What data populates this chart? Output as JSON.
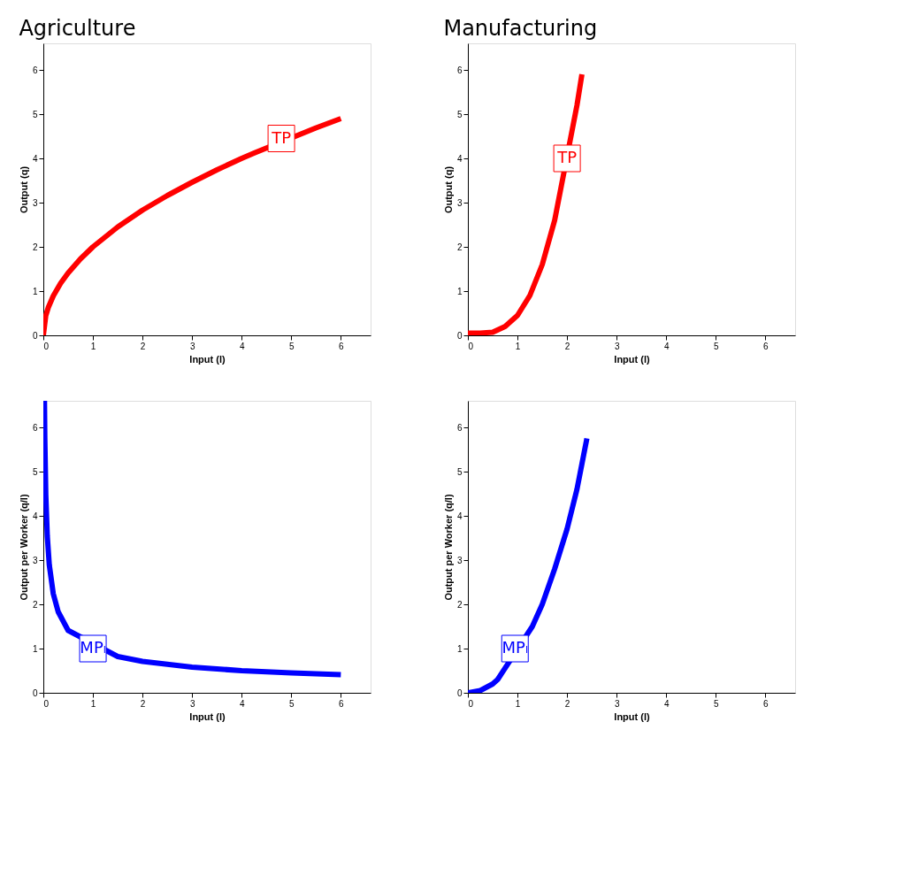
{
  "chart_data": [
    {
      "type": "line",
      "title": "Agriculture",
      "xlabel": "Input (l)",
      "ylabel": "Output (q)",
      "xlim": [
        0,
        6.6
      ],
      "ylim": [
        0,
        6.6
      ],
      "xticks": [
        0,
        1,
        2,
        3,
        4,
        5,
        6
      ],
      "yticks": [
        0,
        1,
        2,
        3,
        4,
        5,
        6
      ],
      "grid": false,
      "series": [
        {
          "color": "#ff0000",
          "x": [
            0,
            0.05,
            0.1,
            0.2,
            0.35,
            0.5,
            0.75,
            1,
            1.5,
            2,
            2.5,
            3,
            3.5,
            4,
            4.25,
            5.5,
            6
          ],
          "values": [
            0,
            0.45,
            0.63,
            0.89,
            1.18,
            1.41,
            1.73,
            2,
            2.45,
            2.83,
            3.16,
            3.46,
            3.74,
            4,
            4.12,
            4.69,
            4.9
          ]
        }
      ],
      "annotations": [
        {
          "text": "TP",
          "x": 4.8,
          "y": 4.45
        }
      ]
    },
    {
      "type": "line",
      "title": "Manufacturing",
      "xlabel": "Input (l)",
      "ylabel": "Output (q)",
      "xlim": [
        0,
        6.6
      ],
      "ylim": [
        0,
        6.6
      ],
      "xticks": [
        0,
        1,
        2,
        3,
        4,
        5,
        6
      ],
      "yticks": [
        0,
        1,
        2,
        3,
        4,
        5,
        6
      ],
      "grid": false,
      "series": [
        {
          "color": "#ff0000",
          "x": [
            0,
            0.25,
            0.5,
            0.75,
            1,
            1.25,
            1.5,
            1.75,
            2.2,
            2.3
          ],
          "values": [
            0.05,
            0.05,
            0.07,
            0.2,
            0.45,
            0.9,
            1.6,
            2.6,
            5.2,
            5.9
          ]
        }
      ],
      "annotations": [
        {
          "text": "TP",
          "x": 2,
          "y": 4
        }
      ]
    },
    {
      "type": "line",
      "xlabel": "Input (l)",
      "ylabel": "Output per Worker (q/l)",
      "xlim": [
        0,
        6.6
      ],
      "ylim": [
        0,
        6.6
      ],
      "xticks": [
        0,
        1,
        2,
        3,
        4,
        5,
        6
      ],
      "yticks": [
        0,
        1,
        2,
        3,
        4,
        5,
        6
      ],
      "grid": false,
      "series": [
        {
          "color": "#0000ff",
          "x": [
            0.023,
            0.03,
            0.05,
            0.08,
            0.12,
            0.2,
            0.3,
            0.5,
            1.5,
            2,
            3,
            4,
            5,
            6
          ],
          "values": [
            6.6,
            5.77,
            4.47,
            3.54,
            2.89,
            2.24,
            1.83,
            1.41,
            0.82,
            0.71,
            0.58,
            0.5,
            0.45,
            0.41
          ]
        }
      ],
      "annotations": [
        {
          "text": "MPₗ",
          "x": 1,
          "y": 1
        }
      ]
    },
    {
      "type": "line",
      "xlabel": "Input (l)",
      "ylabel": "Output per Worker (q/l)",
      "xlim": [
        0,
        6.6
      ],
      "ylim": [
        0,
        6.6
      ],
      "xticks": [
        0,
        1,
        2,
        3,
        4,
        5,
        6
      ],
      "yticks": [
        0,
        1,
        2,
        3,
        4,
        5,
        6
      ],
      "grid": false,
      "series": [
        {
          "color": "#0000ff",
          "x": [
            0,
            0.25,
            0.5,
            0.6,
            1.3,
            1.5,
            1.75,
            2,
            2.2,
            2.4
          ],
          "values": [
            0,
            0.05,
            0.2,
            0.3,
            1.5,
            2.0,
            2.8,
            3.7,
            4.6,
            5.75
          ]
        }
      ],
      "annotations": [
        {
          "text": "MPₗ",
          "x": 0.95,
          "y": 1
        }
      ]
    }
  ]
}
